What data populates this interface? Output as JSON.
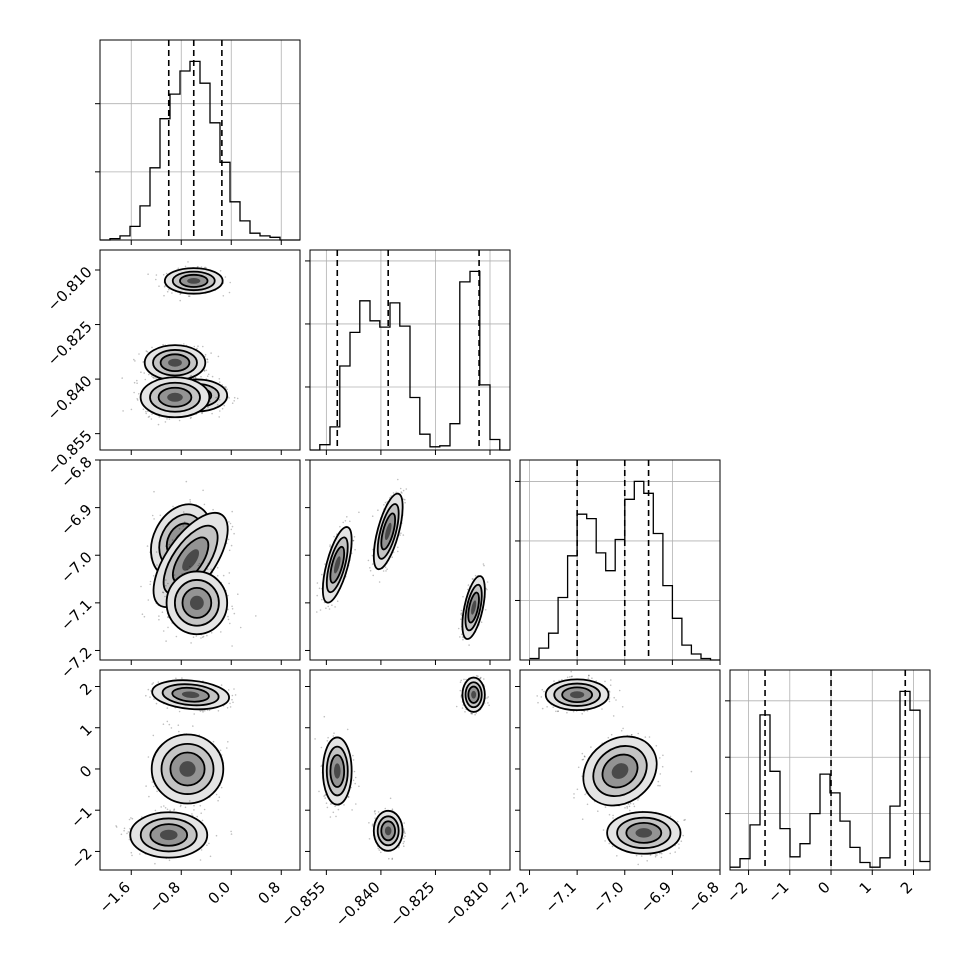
{
  "chart_data": {
    "type": "corner",
    "parameters": [
      {
        "name": "",
        "range": [
          -2.1,
          1.1
        ],
        "ticks": [
          -1.6,
          -0.8,
          0.0,
          0.8
        ],
        "tick_labels": [
          "−1.6",
          "−0.8",
          "0.0",
          "0.8"
        ]
      },
      {
        "name": "",
        "range": [
          -0.8595,
          -0.8045
        ],
        "ticks": [
          -0.855,
          -0.84,
          -0.825,
          -0.81
        ],
        "tick_labels": [
          "−0.855",
          "−0.840",
          "−0.825",
          "−0.810"
        ]
      },
      {
        "name": "",
        "range": [
          -7.22,
          -6.8
        ],
        "ticks": [
          -7.2,
          -7.1,
          -7.0,
          -6.9,
          -6.8
        ],
        "tick_labels": [
          "−7.2",
          "−7.1",
          "−7.0",
          "−6.9",
          "−6.8"
        ]
      },
      {
        "name": "",
        "range": [
          -2.45,
          2.4
        ],
        "ticks": [
          -2,
          -1,
          0,
          1,
          2
        ],
        "tick_labels": [
          "−2",
          "−1",
          "0",
          "1",
          "2"
        ]
      }
    ],
    "marginals": [
      {
        "bin_edges": [
          -2.1,
          -1.94,
          -1.78,
          -1.62,
          -1.46,
          -1.3,
          -1.14,
          -0.98,
          -0.82,
          -0.66,
          -0.5,
          -0.34,
          -0.18,
          -0.02,
          0.14,
          0.3,
          0.46,
          0.62,
          0.78,
          0.94,
          1.1
        ],
        "counts": [
          0,
          1,
          3,
          10,
          25,
          53,
          89,
          107,
          124,
          131,
          115,
          86,
          57,
          28,
          14,
          5,
          3,
          2,
          0,
          0
        ],
        "quantiles": [
          -1.0,
          -0.6,
          -0.15
        ]
      },
      {
        "bin_edges": [
          -0.8595,
          -0.8568,
          -0.854,
          -0.8513,
          -0.8485,
          -0.8458,
          -0.843,
          -0.8403,
          -0.8375,
          -0.8348,
          -0.832,
          -0.8293,
          -0.8265,
          -0.8238,
          -0.821,
          -0.8183,
          -0.8155,
          -0.8128,
          -0.81,
          -0.8073,
          -0.8045
        ],
        "counts": [
          0,
          5,
          22,
          80,
          112,
          142,
          123,
          117,
          140,
          118,
          50,
          15,
          3,
          4,
          25,
          160,
          170,
          62,
          10,
          0
        ],
        "quantiles": [
          -0.852,
          -0.838,
          -0.813
        ]
      },
      {
        "bin_edges": [
          -7.2,
          -7.18,
          -7.16,
          -7.14,
          -7.12,
          -7.1,
          -7.08,
          -7.06,
          -7.04,
          -7.02,
          -7.0,
          -6.98,
          -6.96,
          -6.94,
          -6.92,
          -6.9,
          -6.88,
          -6.86,
          -6.84,
          -6.82,
          -6.8
        ],
        "counts": [
          1,
          8,
          18,
          42,
          70,
          98,
          95,
          72,
          60,
          81,
          108,
          120,
          112,
          85,
          50,
          28,
          10,
          4,
          1,
          0
        ],
        "quantiles": [
          -7.1,
          -7.0,
          -6.95
        ]
      },
      {
        "bin_edges": [
          -2.45,
          -2.2075,
          -1.965,
          -1.7225,
          -1.48,
          -1.2375,
          -0.995,
          -0.7525,
          -0.51,
          -0.2675,
          -0.025,
          0.2175,
          0.46,
          0.7025,
          0.945,
          1.1875,
          1.43,
          1.6725,
          1.915,
          2.1575,
          2.4
        ],
        "counts": [
          3,
          12,
          48,
          165,
          105,
          44,
          14,
          28,
          60,
          102,
          82,
          52,
          24,
          8,
          3,
          13,
          68,
          190,
          170,
          9
        ],
        "quantiles": [
          -1.6,
          0.0,
          1.8
        ]
      }
    ],
    "joint_2d": [
      {
        "x": 0,
        "y": 1,
        "clusters": [
          [
            -0.6,
            -0.813,
            0.21,
            0.0016,
            0.0
          ],
          [
            -0.9,
            -0.8355,
            0.22,
            0.0022,
            0.0
          ],
          [
            -0.55,
            -0.8445,
            0.22,
            0.002,
            0.0
          ],
          [
            -0.9,
            -0.845,
            0.25,
            0.0025,
            0.0
          ]
        ]
      },
      {
        "x": 0,
        "y": 2,
        "clusters": [
          [
            -0.8,
            -6.97,
            0.22,
            0.035,
            0.25
          ],
          [
            -0.65,
            -7.01,
            0.27,
            0.045,
            0.65
          ],
          [
            -0.55,
            -7.1,
            0.22,
            0.03,
            0.0
          ]
        ]
      },
      {
        "x": 0,
        "y": 3,
        "clusters": [
          [
            -0.65,
            1.8,
            0.28,
            0.16,
            -0.2
          ],
          [
            -0.7,
            0.0,
            0.26,
            0.38,
            0.0
          ],
          [
            -1.0,
            -1.6,
            0.28,
            0.25,
            0.0
          ]
        ]
      },
      {
        "x": 1,
        "y": 2,
        "clusters": [
          [
            -0.852,
            -7.02,
            0.0018,
            0.036,
            0.65
          ],
          [
            -0.838,
            -6.95,
            0.0018,
            0.036,
            0.65
          ],
          [
            -0.8145,
            -7.11,
            0.0014,
            0.03,
            0.55
          ]
        ]
      },
      {
        "x": 1,
        "y": 3,
        "clusters": [
          [
            -0.8145,
            1.8,
            0.0014,
            0.19,
            0.0
          ],
          [
            -0.852,
            -0.05,
            0.0018,
            0.37,
            0.0
          ],
          [
            -0.838,
            -1.5,
            0.0018,
            0.22,
            0.0
          ]
        ]
      },
      {
        "x": 2,
        "y": 3,
        "clusters": [
          [
            -7.1,
            1.8,
            0.03,
            0.17,
            0.0
          ],
          [
            -7.01,
            -0.05,
            0.035,
            0.38,
            0.2
          ],
          [
            -6.96,
            -1.55,
            0.035,
            0.23,
            0.0
          ]
        ]
      }
    ],
    "grid": true
  }
}
